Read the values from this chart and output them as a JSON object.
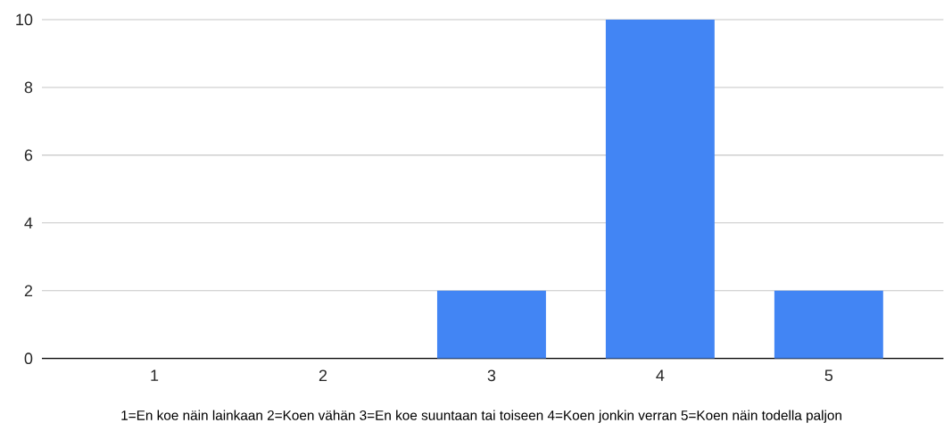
{
  "chart_data": {
    "type": "bar",
    "categories": [
      "1",
      "2",
      "3",
      "4",
      "5"
    ],
    "values": [
      0,
      0,
      2,
      10,
      2
    ],
    "color": "#4285f4",
    "xlabel": "1=En koe näin lainkaan 2=Koen vähän 3=En koe suuntaan tai toiseen 4=Koen jonkin verran 5=Koen näin todella paljon",
    "ylim": [
      0,
      10
    ],
    "yticks": [
      0,
      2,
      4,
      6,
      8,
      10
    ],
    "grid": "y"
  }
}
